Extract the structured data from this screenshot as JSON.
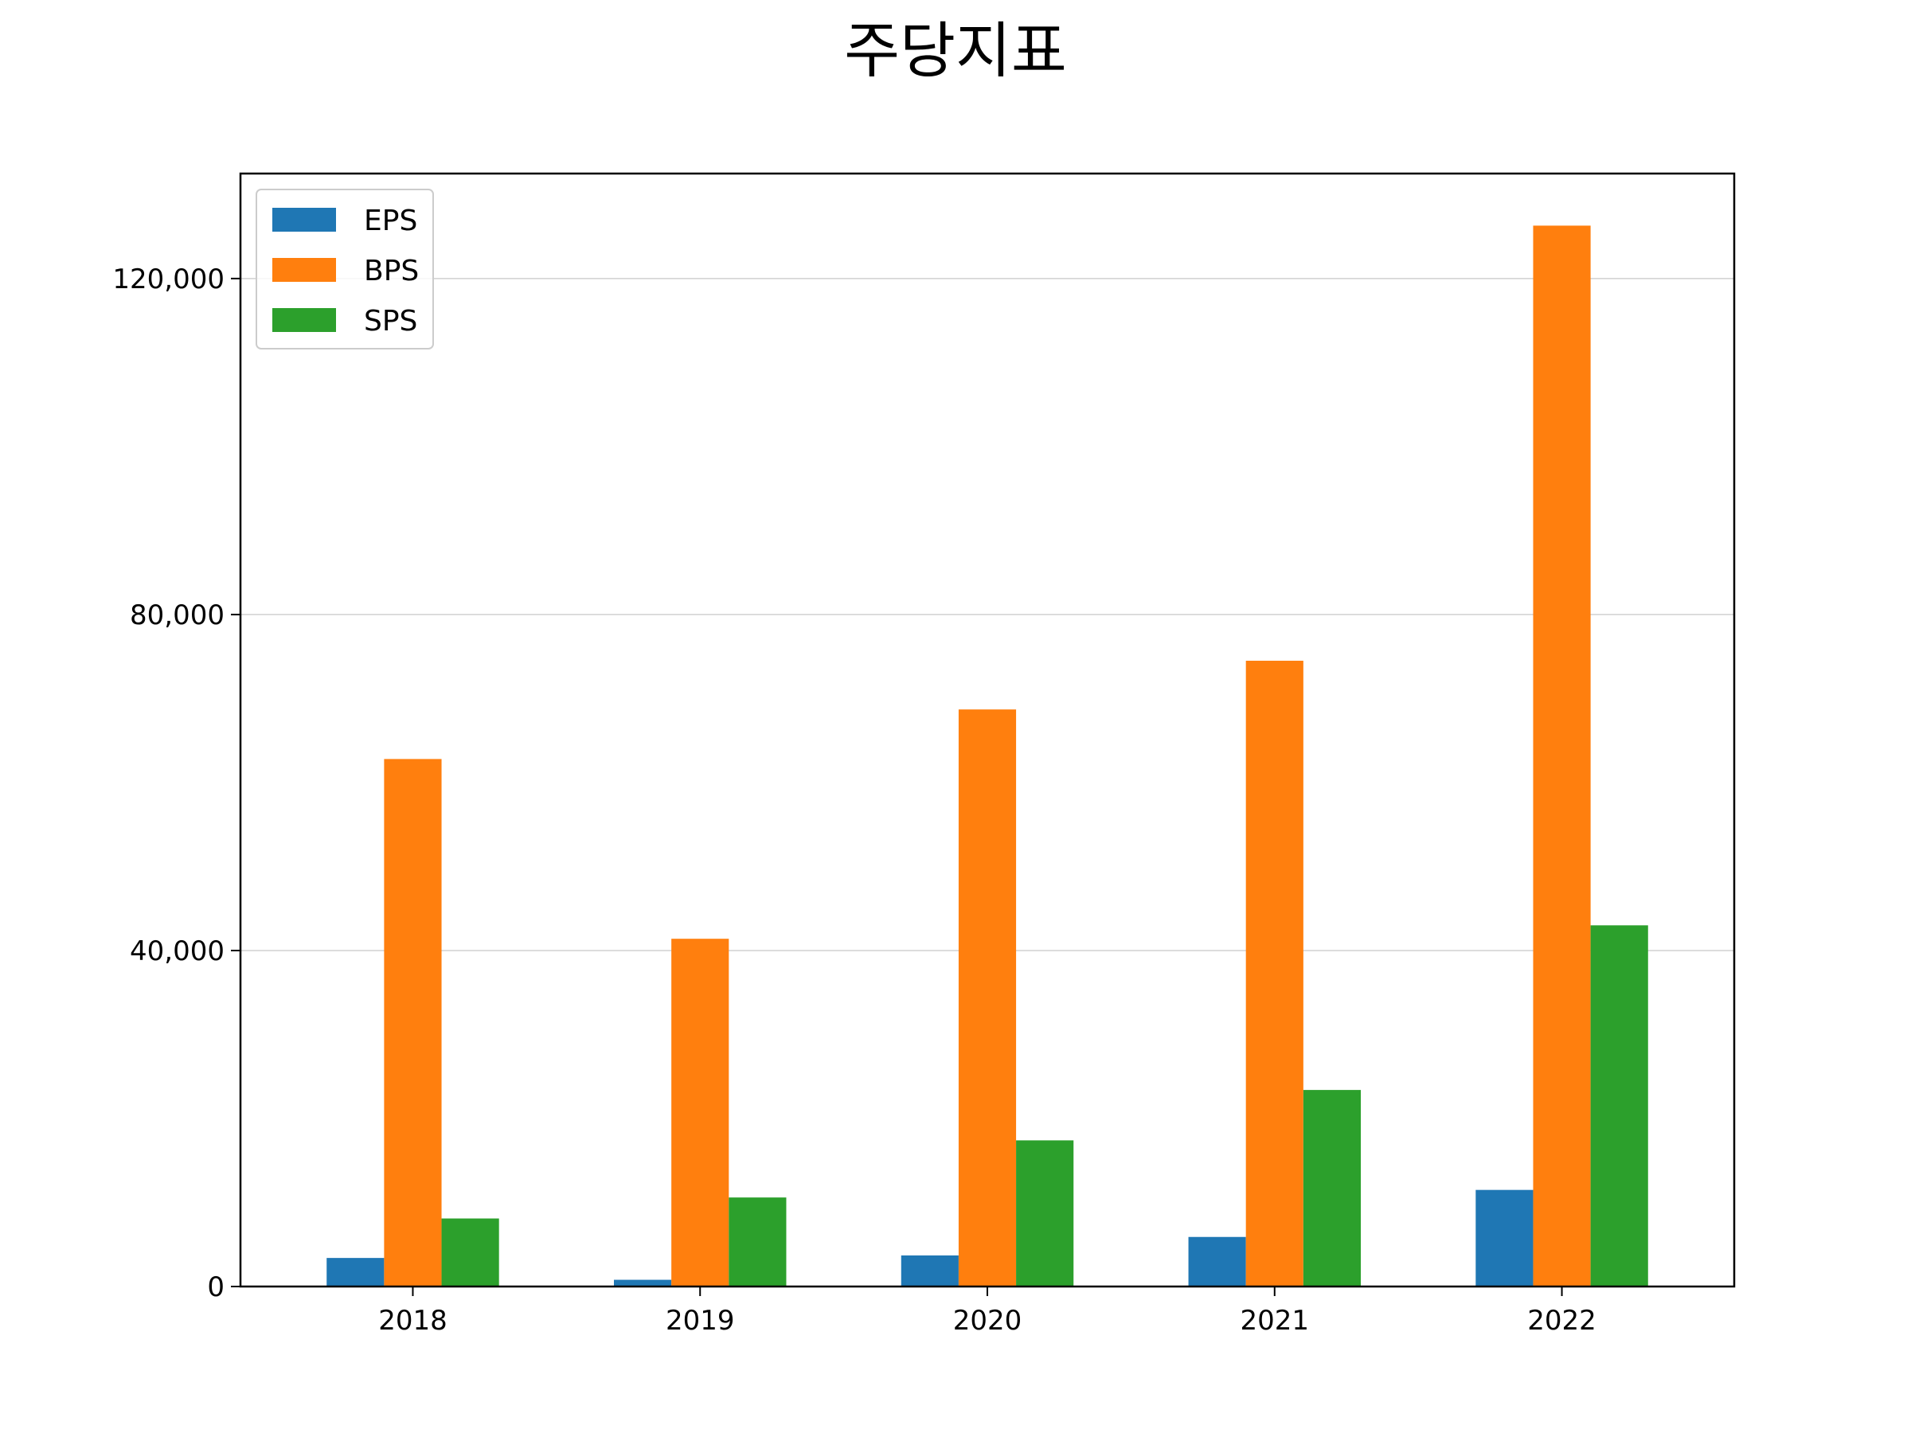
{
  "chart_data": {
    "type": "bar",
    "title": "주당지표",
    "xlabel": "",
    "ylabel": "",
    "categories": [
      "2018",
      "2019",
      "2020",
      "2021",
      "2022"
    ],
    "series": [
      {
        "name": "EPS",
        "color": "#1f77b4",
        "values": [
          3400,
          800,
          3700,
          5900,
          11500
        ]
      },
      {
        "name": "BPS",
        "color": "#ff7f0e",
        "values": [
          62800,
          41400,
          68700,
          74500,
          126300
        ]
      },
      {
        "name": "SPS",
        "color": "#2ca02c",
        "values": [
          8100,
          10600,
          17400,
          23400,
          43000
        ]
      }
    ],
    "ylim": [
      0,
      132500
    ],
    "yticks": [
      0,
      40000,
      80000,
      120000
    ],
    "ytick_labels": [
      "0",
      "40,000",
      "80,000",
      "120,000"
    ],
    "grid": "horizontal",
    "legend_position": "top-left"
  }
}
